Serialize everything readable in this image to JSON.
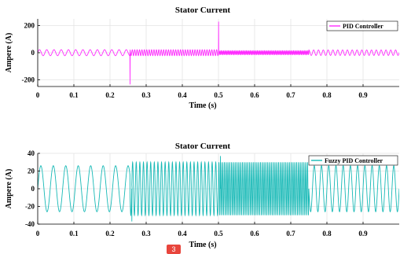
{
  "colors": {
    "pid": "#ff2bff",
    "fuzzy": "#16b9b6",
    "grid": "#e3e3e3",
    "axis": "#000000"
  },
  "page_badge": "3",
  "chart_data": [
    {
      "type": "line",
      "title": "Stator Current",
      "xlabel": "Time (s)",
      "ylabel": "Ampere (A)",
      "xlim": [
        0,
        1
      ],
      "ylim": [
        -250,
        250
      ],
      "xticks": [
        0,
        0.1,
        0.2,
        0.3,
        0.4,
        0.5,
        0.6,
        0.7,
        0.8,
        0.9
      ],
      "xtick_labels": [
        "0",
        "0.1",
        "0.2",
        "0.3",
        "0.4",
        "0.5",
        "0.6",
        "0.7",
        "0.8",
        "0.9"
      ],
      "yticks": [
        200,
        0,
        -200
      ],
      "ytick_labels": [
        "200",
        "0",
        "-200"
      ],
      "grid": true,
      "legend_position": "top-right",
      "series": [
        {
          "name": "PID Controller",
          "color": "#ff2bff",
          "segments": [
            {
              "t_start": 0,
              "t_end": 0.255,
              "frequency_hz": 50,
              "amplitude": 22
            },
            {
              "t_start": 0.255,
              "t_end": 0.5,
              "frequency_hz": 150,
              "amplitude": 22
            },
            {
              "t_start": 0.5,
              "t_end": 0.75,
              "frequency_hz": 300,
              "amplitude": 14
            },
            {
              "t_start": 0.75,
              "t_end": 1,
              "frequency_hz": 75,
              "amplitude": 20
            }
          ],
          "spikes": [
            {
              "t": 0.255,
              "peak": -235
            },
            {
              "t": 0.5,
              "peak": 230
            }
          ]
        }
      ]
    },
    {
      "type": "line",
      "title": "Stator Current",
      "xlabel": "Time (s)",
      "ylabel": "Ampere (A)",
      "xlim": [
        0,
        1
      ],
      "ylim": [
        -40,
        40
      ],
      "xticks": [
        0,
        0.1,
        0.2,
        0.3,
        0.4,
        0.5,
        0.6,
        0.7,
        0.8,
        0.9
      ],
      "xtick_labels": [
        "0",
        "0.1",
        "0.2",
        "0.3",
        "0.4",
        "0.5",
        "0.6",
        "0.7",
        "0.8",
        "0.9"
      ],
      "yticks": [
        40,
        20,
        0,
        -20,
        -40
      ],
      "ytick_labels": [
        "40",
        "20",
        "0",
        "-20",
        "-40"
      ],
      "grid": true,
      "legend_position": "top-right",
      "series": [
        {
          "name": "Fuzzy PID Controller",
          "color": "#16b9b6",
          "segments": [
            {
              "t_start": 0,
              "t_end": 0.255,
              "frequency_hz": 29,
              "amplitude": 26
            },
            {
              "t_start": 0.255,
              "t_end": 0.5,
              "frequency_hz": 100,
              "amplitude": 30
            },
            {
              "t_start": 0.5,
              "t_end": 0.75,
              "frequency_hz": 200,
              "amplitude": 30
            },
            {
              "t_start": 0.75,
              "t_end": 1,
              "frequency_hz": 50,
              "amplitude": 26
            }
          ],
          "spikes": [
            {
              "t": 0.26,
              "peak": -37
            },
            {
              "t": 0.505,
              "peak": 37
            }
          ]
        }
      ]
    }
  ]
}
